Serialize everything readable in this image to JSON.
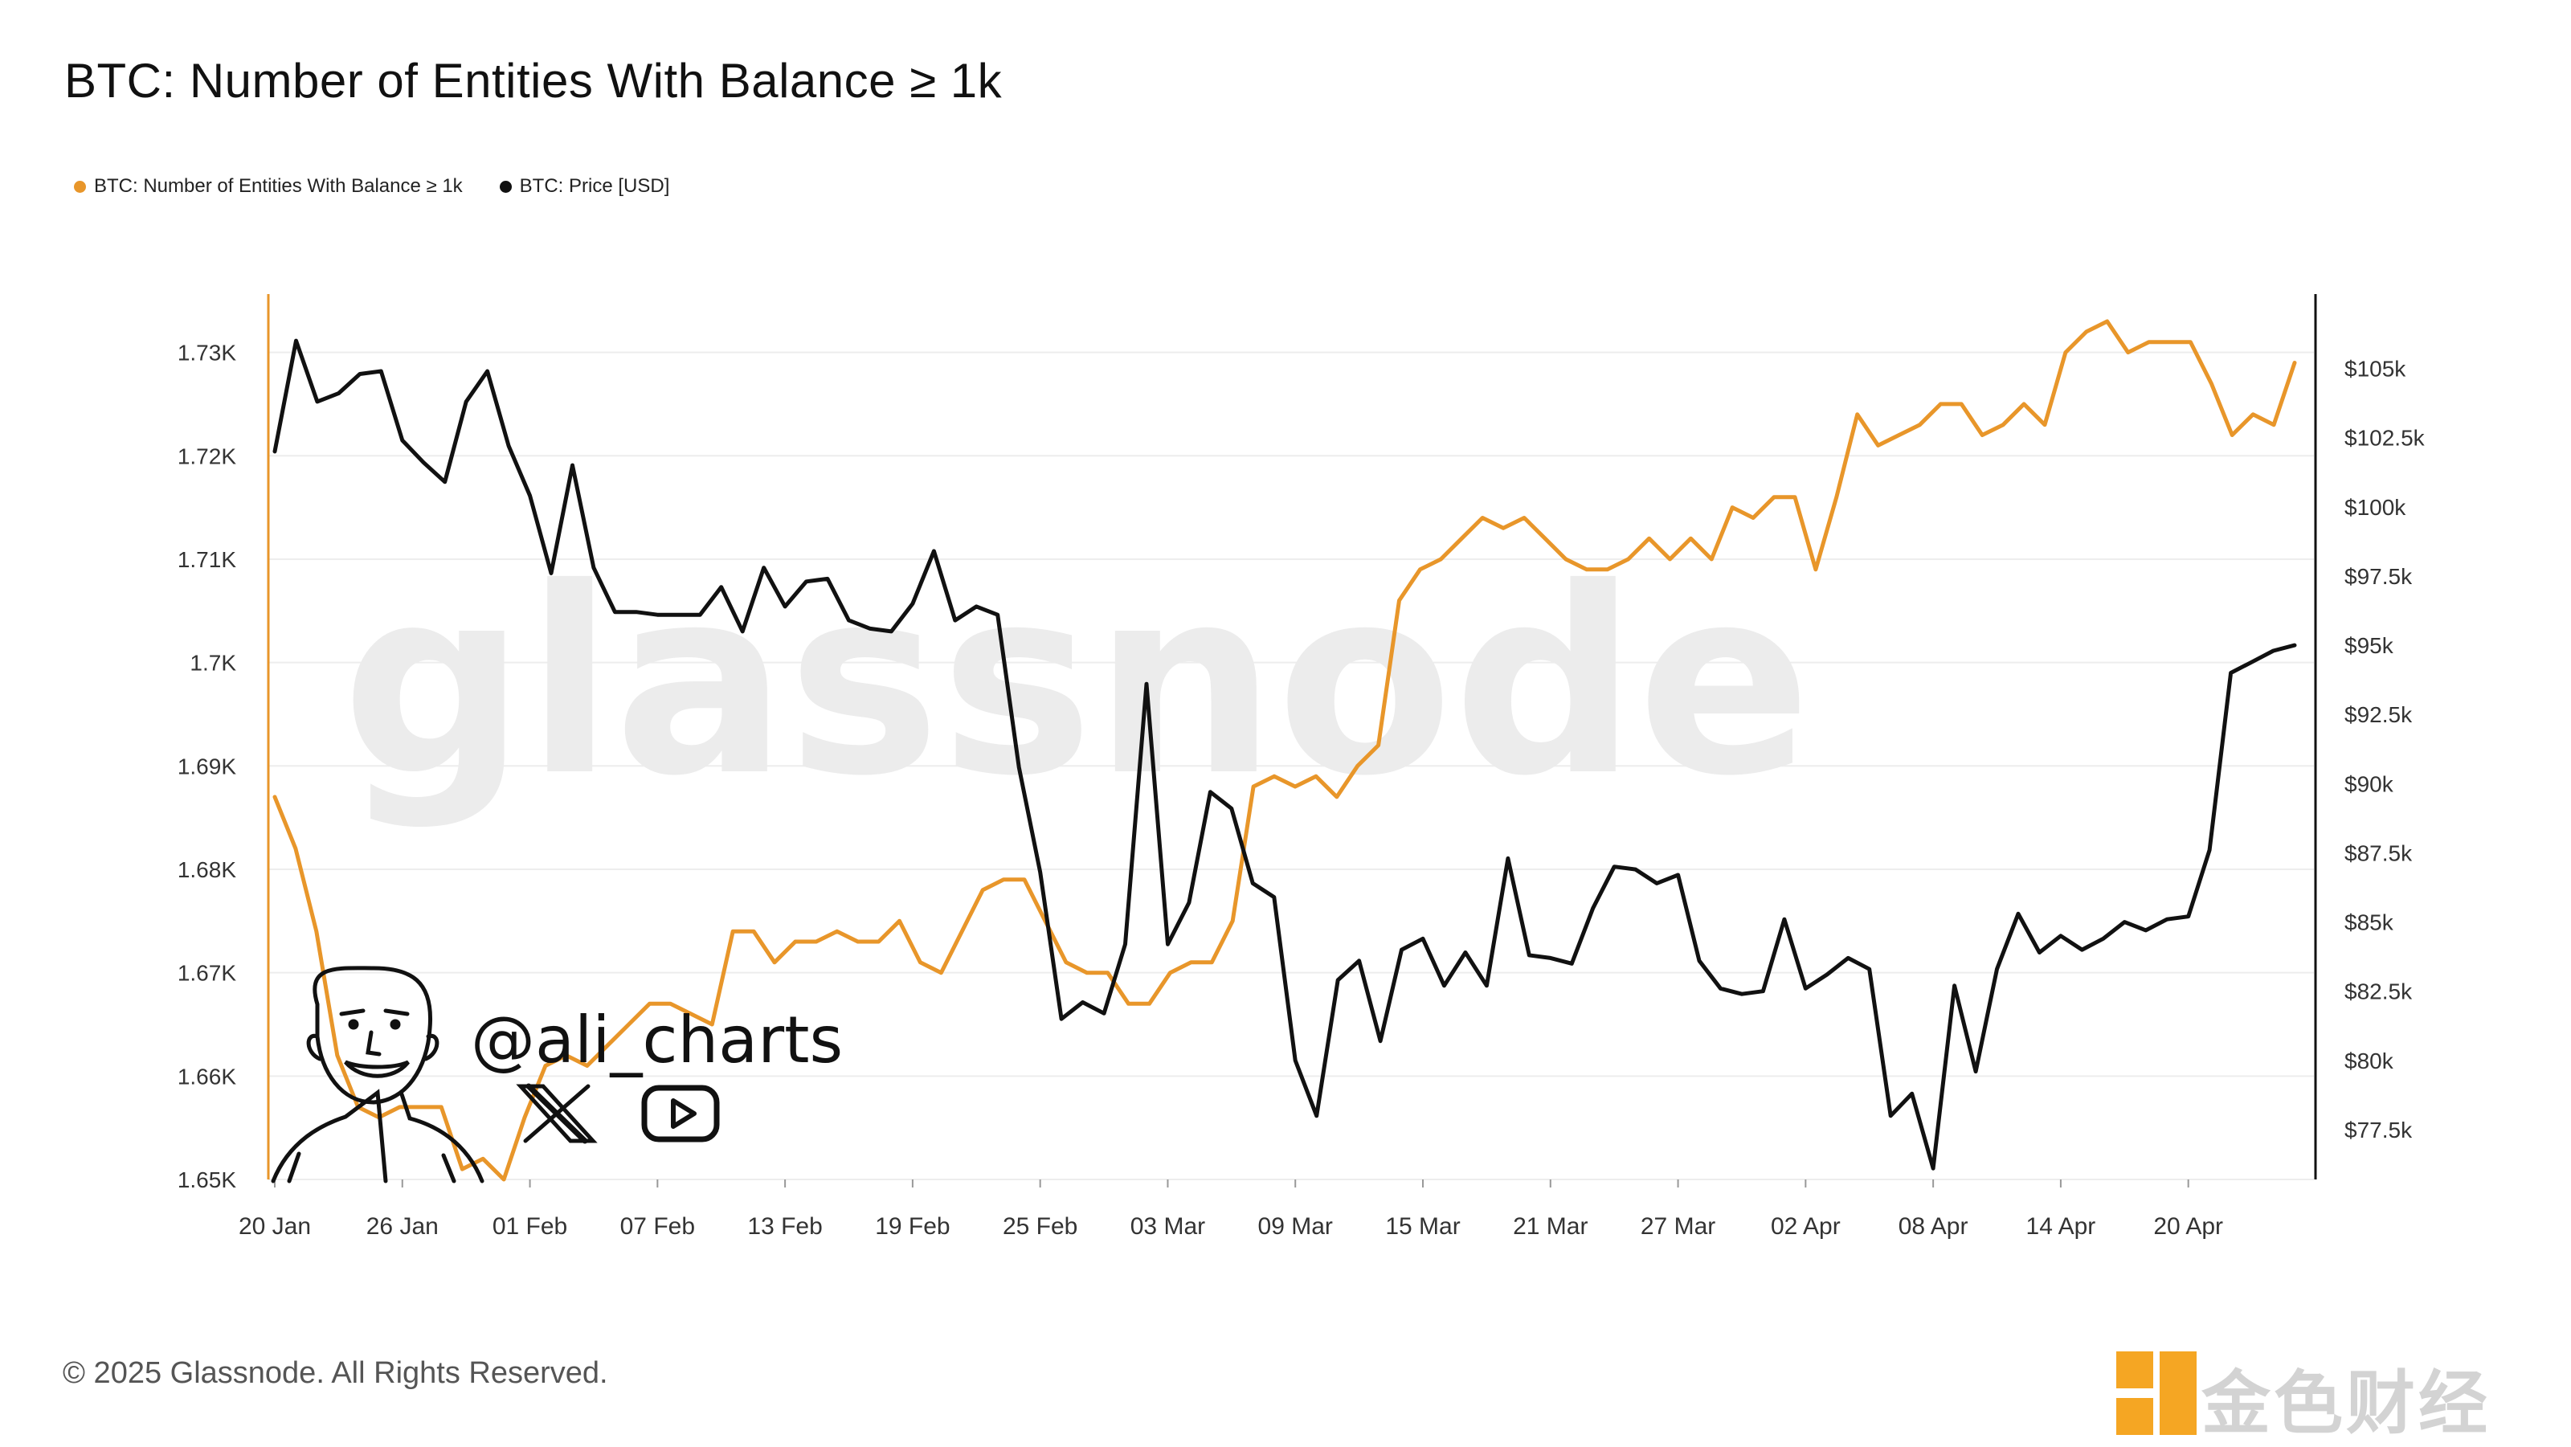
{
  "chart_data": {
    "type": "line",
    "title": "BTC: Number of Entities With Balance ≥ 1k",
    "legend_position": "top-left",
    "x_ticks": [
      "20 Jan",
      "26 Jan",
      "01 Feb",
      "07 Feb",
      "13 Feb",
      "19 Feb",
      "25 Feb",
      "03 Mar",
      "09 Mar",
      "15 Mar",
      "21 Mar",
      "27 Mar",
      "02 Apr",
      "08 Apr",
      "14 Apr",
      "20 Apr"
    ],
    "x_range_days": [
      0,
      95
    ],
    "y_left": {
      "label": "",
      "range": [
        1650,
        1733
      ],
      "ticks": [
        1650,
        1660,
        1670,
        1680,
        1690,
        1700,
        1710,
        1720,
        1730
      ],
      "tick_labels": [
        "1.65K",
        "1.66K",
        "1.67K",
        "1.68K",
        "1.69K",
        "1.7K",
        "1.71K",
        "1.72K",
        "1.73K"
      ]
    },
    "y_right": {
      "label": "",
      "range": [
        75700,
        106700
      ],
      "ticks": [
        77500,
        80000,
        82500,
        85000,
        87500,
        90000,
        92500,
        95000,
        97500,
        100000,
        102500,
        105000
      ],
      "tick_labels": [
        "$77.5k",
        "$80k",
        "$82.5k",
        "$85k",
        "$87.5k",
        "$90k",
        "$92.5k",
        "$95k",
        "$97.5k",
        "$100k",
        "$102.5k",
        "$105k"
      ]
    },
    "grid": true,
    "series": [
      {
        "name": "BTC: Number of Entities With Balance ≥ 1k",
        "color": "#e8962a",
        "axis": "left",
        "values": [
          1687,
          1682,
          1674,
          1662,
          1657,
          1656,
          1657,
          1657,
          1657,
          1651,
          1652,
          1650,
          1656,
          1661,
          1662,
          1661,
          1663,
          1665,
          1667,
          1667,
          1666,
          1665,
          1674,
          1674,
          1671,
          1673,
          1673,
          1674,
          1673,
          1673,
          1675,
          1671,
          1670,
          1674,
          1678,
          1679,
          1679,
          1675,
          1671,
          1670,
          1670,
          1667,
          1667,
          1670,
          1671,
          1671,
          1675,
          1688,
          1689,
          1688,
          1689,
          1687,
          1690,
          1692,
          1706,
          1709,
          1710,
          1712,
          1714,
          1713,
          1714,
          1712,
          1710,
          1709,
          1709,
          1710,
          1712,
          1710,
          1712,
          1710,
          1715,
          1714,
          1716,
          1716,
          1709,
          1716,
          1724,
          1721,
          1722,
          1723,
          1725,
          1725,
          1722,
          1723,
          1725,
          1723,
          1730,
          1732,
          1733,
          1730,
          1731,
          1731,
          1731,
          1727,
          1722,
          1724,
          1723,
          1729
        ]
      },
      {
        "name": "BTC: Price [USD]",
        "color": "#111111",
        "axis": "right",
        "values": [
          102000,
          106000,
          103800,
          104100,
          104800,
          104900,
          102400,
          101600,
          100900,
          103800,
          104900,
          102200,
          100400,
          97600,
          101500,
          97800,
          96200,
          96200,
          96100,
          96100,
          96100,
          97100,
          95500,
          97800,
          96400,
          97300,
          97400,
          95900,
          95600,
          95500,
          96500,
          98400,
          95900,
          96400,
          96100,
          90600,
          86800,
          81500,
          82100,
          81700,
          84200,
          93600,
          84200,
          85700,
          89700,
          89100,
          86400,
          85900,
          80000,
          78000,
          82900,
          83600,
          80700,
          84000,
          84400,
          82700,
          83900,
          82700,
          87300,
          83800,
          83700,
          83500,
          85500,
          87000,
          86900,
          86400,
          86700,
          83600,
          82600,
          82400,
          82500,
          85100,
          82600,
          83100,
          83700,
          83300,
          78000,
          78800,
          76100,
          82700,
          79600,
          83300,
          85300,
          83900,
          84500,
          84000,
          84400,
          85000,
          84700,
          85100,
          85200,
          87600,
          94000,
          94400,
          94800,
          95000
        ]
      }
    ]
  },
  "legend": {
    "entities_label": "BTC: Number of Entities With Balance ≥ 1k",
    "price_label": "BTC: Price [USD]"
  },
  "watermark": "glassnode",
  "overlay": {
    "handle": "@ali_charts",
    "x_icon": "x-logo-icon",
    "youtube_icon": "youtube-icon",
    "avatar": "avatar-illustration"
  },
  "footer": {
    "copyright": "© 2025 Glassnode. All Rights Reserved.",
    "brand": "金色财经"
  }
}
